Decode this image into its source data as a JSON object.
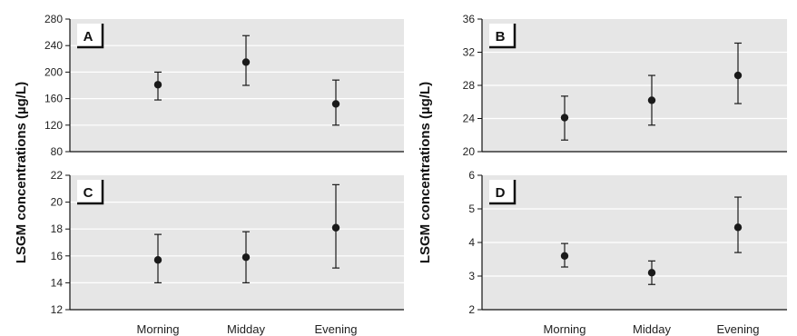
{
  "ylabel_left": "LSGM concentrations (µg/L)",
  "ylabel_right": "LSGM concentrations (µg/L)",
  "colors": {
    "plot_bg": "#e6e6e6",
    "grid": "#ffffff",
    "marker": "#1a1a1a",
    "axis": "#111111"
  },
  "chart_data": [
    {
      "type": "scatter",
      "panel": "A",
      "categories": [
        "Morning",
        "Midday",
        "Evening"
      ],
      "y_ticks": [
        "80",
        "120",
        "160",
        "200",
        "240",
        "280"
      ],
      "ylim": [
        80,
        280
      ],
      "series": [
        {
          "values": [
            181,
            215,
            152
          ],
          "error_low": [
            158,
            180,
            120
          ],
          "error_high": [
            200,
            255,
            188
          ]
        }
      ],
      "grid": true,
      "show_category_labels": false
    },
    {
      "type": "scatter",
      "panel": "B",
      "categories": [
        "Morning",
        "Midday",
        "Evening"
      ],
      "y_ticks": [
        "20",
        "24",
        "28",
        "32",
        "36"
      ],
      "ylim": [
        20,
        36
      ],
      "series": [
        {
          "values": [
            24.1,
            26.2,
            29.2
          ],
          "error_low": [
            21.4,
            23.2,
            25.8
          ],
          "error_high": [
            26.7,
            29.2,
            33.1
          ]
        }
      ],
      "grid": true,
      "show_category_labels": false
    },
    {
      "type": "scatter",
      "panel": "C",
      "categories": [
        "Morning",
        "Midday",
        "Evening"
      ],
      "y_ticks": [
        "12",
        "14",
        "16",
        "18",
        "20",
        "22"
      ],
      "ylim": [
        12,
        22
      ],
      "series": [
        {
          "values": [
            15.7,
            15.9,
            18.1
          ],
          "error_low": [
            14.0,
            14.0,
            15.1
          ],
          "error_high": [
            17.6,
            17.8,
            21.3
          ]
        }
      ],
      "grid": true,
      "show_category_labels": true
    },
    {
      "type": "scatter",
      "panel": "D",
      "categories": [
        "Morning",
        "Midday",
        "Evening"
      ],
      "y_ticks": [
        "2",
        "3",
        "4",
        "5",
        "6"
      ],
      "ylim": [
        2,
        6
      ],
      "series": [
        {
          "values": [
            3.6,
            3.1,
            4.45
          ],
          "error_low": [
            3.27,
            2.75,
            3.7
          ],
          "error_high": [
            3.97,
            3.45,
            5.35
          ]
        }
      ],
      "grid": true,
      "show_category_labels": true
    }
  ]
}
